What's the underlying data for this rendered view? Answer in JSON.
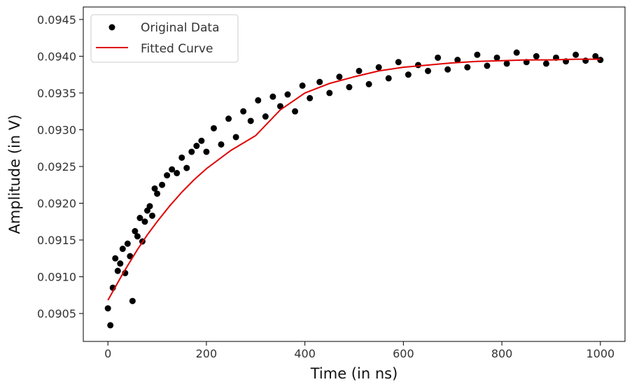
{
  "chart_data": {
    "type": "scatter",
    "title": "",
    "xlabel": "Time (in ns)",
    "ylabel": "Amplitude (in V)",
    "xlim": [
      -50,
      1050
    ],
    "ylim": [
      0.09012,
      0.09467
    ],
    "x_ticks": [
      0,
      200,
      400,
      600,
      800,
      1000
    ],
    "x_tick_labels": [
      "0",
      "200",
      "400",
      "600",
      "800",
      "1000"
    ],
    "y_ticks": [
      0.0905,
      0.091,
      0.0915,
      0.092,
      0.0925,
      0.093,
      0.0935,
      0.094,
      0.0945
    ],
    "y_tick_labels": [
      "0.0905",
      "0.0910",
      "0.0915",
      "0.0920",
      "0.0925",
      "0.0930",
      "0.0935",
      "0.0940",
      "0.0945"
    ],
    "grid": false,
    "legend": {
      "position": "top-left",
      "entries": [
        "Original Data",
        "Fitted Curve"
      ]
    },
    "colors": {
      "data": "#000000",
      "fit": "#e00000"
    },
    "series": [
      {
        "name": "Original Data",
        "kind": "scatter",
        "x": [
          0,
          5,
          10,
          15,
          20,
          25,
          30,
          35,
          40,
          45,
          50,
          55,
          60,
          65,
          70,
          75,
          80,
          85,
          90,
          95,
          100,
          110,
          120,
          130,
          140,
          150,
          160,
          170,
          180,
          190,
          200,
          215,
          230,
          245,
          260,
          275,
          290,
          305,
          320,
          335,
          350,
          365,
          380,
          395,
          410,
          430,
          450,
          470,
          490,
          510,
          530,
          550,
          570,
          590,
          610,
          630,
          650,
          670,
          690,
          710,
          730,
          750,
          770,
          790,
          810,
          830,
          850,
          870,
          890,
          910,
          930,
          950,
          970,
          990,
          1000
        ],
        "y": [
          0.09057,
          0.09034,
          0.09085,
          0.09125,
          0.09108,
          0.09118,
          0.09138,
          0.09105,
          0.09145,
          0.09128,
          0.09067,
          0.09162,
          0.09155,
          0.0918,
          0.09148,
          0.09175,
          0.0919,
          0.09196,
          0.09183,
          0.0922,
          0.09213,
          0.09225,
          0.09238,
          0.09246,
          0.09241,
          0.09262,
          0.09248,
          0.0927,
          0.09278,
          0.09285,
          0.0927,
          0.09302,
          0.0928,
          0.09315,
          0.0929,
          0.09325,
          0.09312,
          0.0934,
          0.09318,
          0.09345,
          0.09332,
          0.09348,
          0.09325,
          0.0936,
          0.09343,
          0.09365,
          0.0935,
          0.09372,
          0.09358,
          0.0938,
          0.09362,
          0.09385,
          0.0937,
          0.09392,
          0.09375,
          0.09388,
          0.0938,
          0.09398,
          0.09382,
          0.09395,
          0.09385,
          0.09402,
          0.09387,
          0.09398,
          0.0939,
          0.09405,
          0.09392,
          0.094,
          0.0939,
          0.09398,
          0.09393,
          0.09402,
          0.09394,
          0.094,
          0.09395
        ]
      },
      {
        "name": "Fitted Curve",
        "kind": "line",
        "x": [
          0,
          10,
          20,
          30,
          40,
          50,
          60,
          70,
          80,
          90,
          100,
          125,
          150,
          175,
          200,
          250,
          300,
          350,
          400,
          450,
          500,
          550,
          600,
          650,
          700,
          750,
          800,
          850,
          900,
          950,
          1000
        ],
        "y": [
          0.09068,
          0.0908,
          0.09092,
          0.09104,
          0.09115,
          0.09126,
          0.09137,
          0.09147,
          0.09157,
          0.09166,
          0.09175,
          0.09196,
          0.09215,
          0.09232,
          0.09247,
          0.09272,
          0.09292,
          0.09327,
          0.0935,
          0.09363,
          0.09372,
          0.0938,
          0.09385,
          0.09388,
          0.09391,
          0.09393,
          0.09394,
          0.09395,
          0.09395,
          0.09396,
          0.09396
        ]
      }
    ]
  }
}
